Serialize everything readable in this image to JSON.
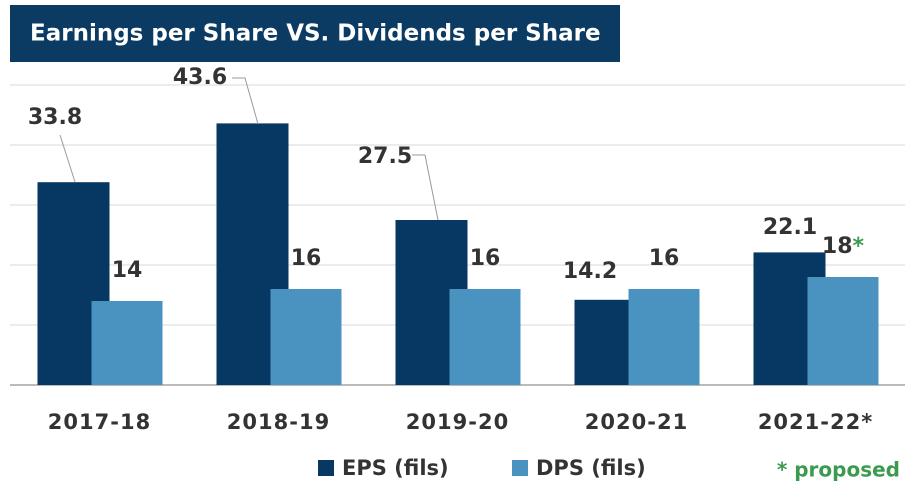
{
  "chart_data": {
    "type": "bar",
    "title": "Earnings per Share VS. Dividends per Share",
    "categories": [
      "2017-18",
      "2018-19",
      "2019-20",
      "2020-21",
      "2021-22*"
    ],
    "series": [
      {
        "name": "EPS (fils)",
        "color": "#073763",
        "values": [
          33.8,
          43.6,
          27.5,
          14.2,
          22.1
        ]
      },
      {
        "name": "DPS (fils)",
        "color": "#4a93c1",
        "values": [
          14,
          16,
          16,
          16,
          18
        ]
      }
    ],
    "marker": "*",
    "footnote": "* proposed",
    "note_color": "#3a9a4e",
    "ylim": [
      0,
      50
    ],
    "yticks": [
      0,
      10,
      20,
      30,
      40,
      50
    ],
    "grid": true
  }
}
